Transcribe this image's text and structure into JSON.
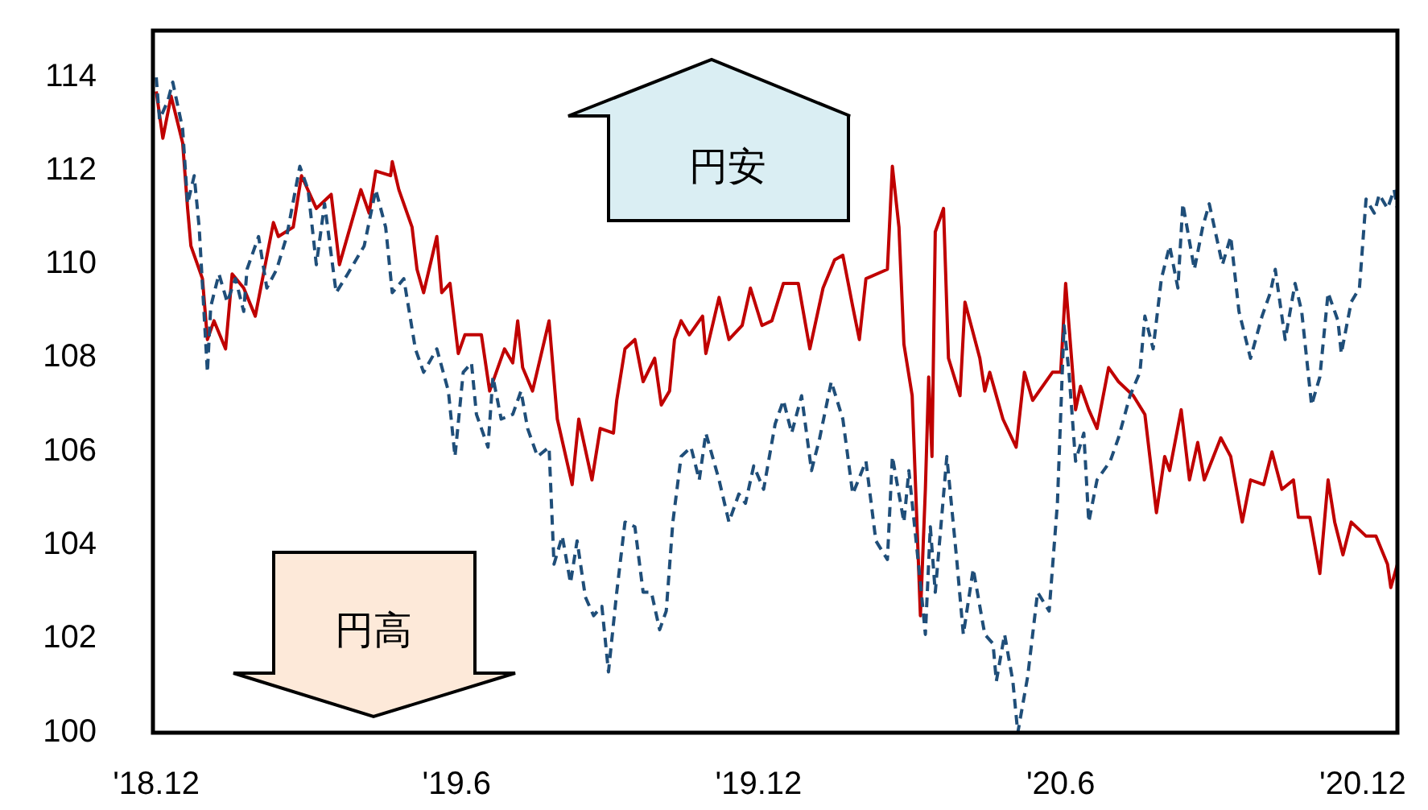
{
  "chart_data": {
    "type": "line",
    "annotations": [
      "円安",
      "円高"
    ],
    "xlim": [
      "2018-11-29",
      "2020-12-22"
    ],
    "xticks": [
      {
        "value": "2018-12-01",
        "label": "'18.12"
      },
      {
        "value": "2019-06-01",
        "label": "'19.6"
      },
      {
        "value": "2019-12-01",
        "label": "'19.12"
      },
      {
        "value": "2020-06-01",
        "label": "'20.6"
      },
      {
        "value": "2020-12-01",
        "label": "'20.12"
      }
    ],
    "ylim": [
      100,
      115
    ],
    "yticks": [
      100,
      102,
      104,
      106,
      108,
      110,
      112,
      114
    ],
    "grid": false,
    "series": [
      {
        "color": "#c00000",
        "line_style": "solid",
        "x": [
          "2018-12-01",
          "2018-12-05",
          "2018-12-10",
          "2018-12-17",
          "2018-12-20",
          "2018-12-22",
          "2018-12-29",
          "2019-01-01",
          "2019-01-05",
          "2019-01-12",
          "2019-01-16",
          "2019-01-23",
          "2019-01-30",
          "2019-02-10",
          "2019-02-13",
          "2019-02-22",
          "2019-02-27",
          "2019-03-08",
          "2019-03-17",
          "2019-03-22",
          "2019-04-04",
          "2019-04-09",
          "2019-04-13",
          "2019-04-22",
          "2019-04-23",
          "2019-04-27",
          "2019-05-05",
          "2019-05-08",
          "2019-05-12",
          "2019-05-20",
          "2019-05-23",
          "2019-05-28",
          "2019-06-02",
          "2019-06-06",
          "2019-06-16",
          "2019-06-21",
          "2019-06-25",
          "2019-06-30",
          "2019-07-05",
          "2019-07-08",
          "2019-07-11",
          "2019-07-17",
          "2019-07-27",
          "2019-08-01",
          "2019-08-10",
          "2019-08-14",
          "2019-08-22",
          "2019-08-27",
          "2019-09-04",
          "2019-09-06",
          "2019-09-11",
          "2019-09-17",
          "2019-09-22",
          "2019-09-29",
          "2019-10-03",
          "2019-10-08",
          "2019-10-11",
          "2019-10-15",
          "2019-10-20",
          "2019-10-28",
          "2019-10-30",
          "2019-11-07",
          "2019-11-13",
          "2019-11-21",
          "2019-11-26",
          "2019-12-03",
          "2019-12-09",
          "2019-12-16",
          "2019-12-25",
          "2020-01-01",
          "2020-01-09",
          "2020-01-16",
          "2020-01-21",
          "2020-01-27",
          "2020-01-31",
          "2020-02-04",
          "2020-02-17",
          "2020-02-20",
          "2020-02-24",
          "2020-02-27",
          "2020-03-03",
          "2020-03-08",
          "2020-03-11",
          "2020-03-13",
          "2020-03-15",
          "2020-03-17",
          "2020-03-22",
          "2020-03-25",
          "2020-04-01",
          "2020-04-04",
          "2020-04-13",
          "2020-04-16",
          "2020-04-19",
          "2020-04-27",
          "2020-05-05",
          "2020-05-10",
          "2020-05-15",
          "2020-05-27",
          "2020-06-01",
          "2020-06-04",
          "2020-06-10",
          "2020-06-13",
          "2020-06-18",
          "2020-06-23",
          "2020-06-30",
          "2020-07-06",
          "2020-07-15",
          "2020-07-22",
          "2020-07-25",
          "2020-07-29",
          "2020-08-03",
          "2020-08-06",
          "2020-08-13",
          "2020-08-18",
          "2020-08-23",
          "2020-08-27",
          "2020-09-06",
          "2020-09-12",
          "2020-09-19",
          "2020-09-24",
          "2020-10-02",
          "2020-10-07",
          "2020-10-13",
          "2020-10-20",
          "2020-10-23",
          "2020-10-30",
          "2020-11-05",
          "2020-11-10",
          "2020-11-14",
          "2020-11-19",
          "2020-11-24",
          "2020-12-03",
          "2020-12-09",
          "2020-12-16",
          "2020-12-18",
          "2020-12-22"
        ],
        "values": [
          113.7,
          112.7,
          113.6,
          112.6,
          111.2,
          110.4,
          109.7,
          108.4,
          108.8,
          108.2,
          109.8,
          109.5,
          108.9,
          110.9,
          110.6,
          110.8,
          111.9,
          111.2,
          111.5,
          110.0,
          111.6,
          111.1,
          112.0,
          111.9,
          112.2,
          111.6,
          110.8,
          109.9,
          109.4,
          110.6,
          109.4,
          109.6,
          108.1,
          108.5,
          108.5,
          107.3,
          107.7,
          108.2,
          107.9,
          108.8,
          107.8,
          107.3,
          108.8,
          106.7,
          105.3,
          106.7,
          105.4,
          106.5,
          106.4,
          107.1,
          108.2,
          108.4,
          107.5,
          108.0,
          107.0,
          107.3,
          108.4,
          108.8,
          108.5,
          108.9,
          108.1,
          109.3,
          108.4,
          108.7,
          109.5,
          108.7,
          108.8,
          109.6,
          109.6,
          108.2,
          109.5,
          110.1,
          110.2,
          109.1,
          108.4,
          109.7,
          109.9,
          112.1,
          110.8,
          108.3,
          107.2,
          102.5,
          105.2,
          107.6,
          105.9,
          110.7,
          111.2,
          108.0,
          107.2,
          109.2,
          108.0,
          107.3,
          107.7,
          106.7,
          106.1,
          107.7,
          107.1,
          107.7,
          107.7,
          109.6,
          106.9,
          107.4,
          106.9,
          106.5,
          107.8,
          107.5,
          107.2,
          106.8,
          105.9,
          104.7,
          105.9,
          105.6,
          106.9,
          105.4,
          106.2,
          105.4,
          106.3,
          105.9,
          104.5,
          105.4,
          105.3,
          106.0,
          105.2,
          105.4,
          104.6,
          104.6,
          103.4,
          105.4,
          104.5,
          103.8,
          104.5,
          104.2,
          104.2,
          103.6,
          103.1,
          103.6
        ]
      },
      {
        "color": "#1f4e79",
        "line_style": "dashed",
        "x": [
          "2018-12-01",
          "2018-12-03",
          "2018-12-08",
          "2018-12-11",
          "2018-12-17",
          "2018-12-20",
          "2018-12-24",
          "2018-12-27",
          "2019-01-01",
          "2019-01-03",
          "2019-01-08",
          "2019-01-13",
          "2019-01-18",
          "2019-01-23",
          "2019-01-25",
          "2019-02-01",
          "2019-02-06",
          "2019-02-12",
          "2019-02-18",
          "2019-02-26",
          "2019-03-03",
          "2019-03-08",
          "2019-03-13",
          "2019-03-20",
          "2019-03-27",
          "2019-04-06",
          "2019-04-13",
          "2019-04-19",
          "2019-04-23",
          "2019-04-30",
          "2019-05-07",
          "2019-05-12",
          "2019-05-20",
          "2019-05-27",
          "2019-05-31",
          "2019-06-05",
          "2019-06-10",
          "2019-06-13",
          "2019-06-20",
          "2019-06-23",
          "2019-06-28",
          "2019-07-05",
          "2019-07-10",
          "2019-07-14",
          "2019-07-20",
          "2019-07-27",
          "2019-07-30",
          "2019-08-04",
          "2019-08-09",
          "2019-08-13",
          "2019-08-18",
          "2019-08-23",
          "2019-08-28",
          "2019-09-01",
          "2019-09-06",
          "2019-09-11",
          "2019-09-17",
          "2019-09-22",
          "2019-09-27",
          "2019-10-02",
          "2019-10-06",
          "2019-10-10",
          "2019-10-15",
          "2019-10-21",
          "2019-10-26",
          "2019-10-30",
          "2019-11-07",
          "2019-11-13",
          "2019-11-19",
          "2019-11-23",
          "2019-11-28",
          "2019-12-04",
          "2019-12-11",
          "2019-12-16",
          "2019-12-21",
          "2019-12-27",
          "2020-01-02",
          "2020-01-07",
          "2020-01-14",
          "2020-01-21",
          "2020-01-27",
          "2020-02-04",
          "2020-02-10",
          "2020-02-17",
          "2020-02-20",
          "2020-02-27",
          "2020-03-01",
          "2020-03-08",
          "2020-03-11",
          "2020-03-14",
          "2020-03-17",
          "2020-03-24",
          "2020-03-30",
          "2020-04-03",
          "2020-04-09",
          "2020-04-16",
          "2020-04-21",
          "2020-04-23",
          "2020-04-28",
          "2020-05-03",
          "2020-05-06",
          "2020-05-12",
          "2020-05-18",
          "2020-05-25",
          "2020-05-30",
          "2020-06-03",
          "2020-06-06",
          "2020-06-10",
          "2020-06-15",
          "2020-06-18",
          "2020-06-23",
          "2020-07-01",
          "2020-07-06",
          "2020-07-13",
          "2020-07-19",
          "2020-07-22",
          "2020-07-27",
          "2020-08-01",
          "2020-08-06",
          "2020-08-11",
          "2020-08-14",
          "2020-08-21",
          "2020-08-26",
          "2020-08-30",
          "2020-09-07",
          "2020-09-12",
          "2020-09-17",
          "2020-09-24",
          "2020-10-01",
          "2020-10-06",
          "2020-10-09",
          "2020-10-15",
          "2020-10-21",
          "2020-10-25",
          "2020-10-31",
          "2020-11-05",
          "2020-11-10",
          "2020-11-16",
          "2020-11-18",
          "2020-11-24",
          "2020-11-29",
          "2020-12-03",
          "2020-12-08",
          "2020-12-11",
          "2020-12-16",
          "2020-12-20",
          "2020-12-22"
        ],
        "values": [
          114.0,
          113.1,
          113.5,
          113.9,
          112.9,
          111.3,
          111.9,
          110.8,
          107.7,
          109.1,
          109.8,
          109.2,
          109.7,
          109.0,
          109.9,
          110.6,
          109.5,
          109.9,
          110.6,
          112.1,
          111.6,
          110.0,
          111.3,
          109.4,
          109.8,
          110.4,
          111.6,
          110.8,
          109.4,
          109.7,
          108.2,
          107.7,
          108.2,
          107.3,
          105.9,
          107.7,
          107.9,
          106.8,
          106.1,
          107.6,
          106.7,
          106.8,
          107.3,
          106.5,
          105.9,
          106.1,
          103.6,
          104.2,
          103.2,
          104.1,
          102.9,
          102.5,
          102.7,
          101.3,
          103.0,
          104.5,
          104.4,
          103.0,
          103.0,
          102.2,
          102.6,
          104.5,
          105.9,
          106.1,
          105.4,
          106.4,
          105.4,
          104.5,
          105.1,
          104.9,
          105.7,
          105.2,
          106.6,
          107.1,
          106.4,
          107.2,
          105.6,
          106.3,
          107.5,
          106.7,
          105.1,
          105.8,
          104.1,
          103.7,
          105.9,
          104.5,
          105.6,
          103.2,
          102.1,
          104.4,
          103.0,
          105.9,
          103.7,
          102.1,
          103.5,
          102.1,
          101.9,
          101.1,
          102.1,
          101.1,
          100.0,
          101.2,
          103.0,
          102.6,
          104.9,
          108.7,
          107.7,
          105.8,
          106.4,
          104.5,
          105.4,
          105.8,
          106.3,
          107.2,
          107.7,
          108.9,
          108.2,
          109.7,
          110.4,
          109.5,
          111.3,
          109.9,
          110.8,
          111.3,
          110.0,
          110.6,
          109.0,
          108.0,
          108.9,
          109.4,
          109.9,
          108.4,
          109.6,
          109.0,
          107.0,
          107.6,
          109.4,
          108.8,
          108.1,
          109.2,
          109.5,
          111.4,
          111.1,
          111.5,
          111.2,
          111.6,
          111.2
        ]
      }
    ]
  }
}
